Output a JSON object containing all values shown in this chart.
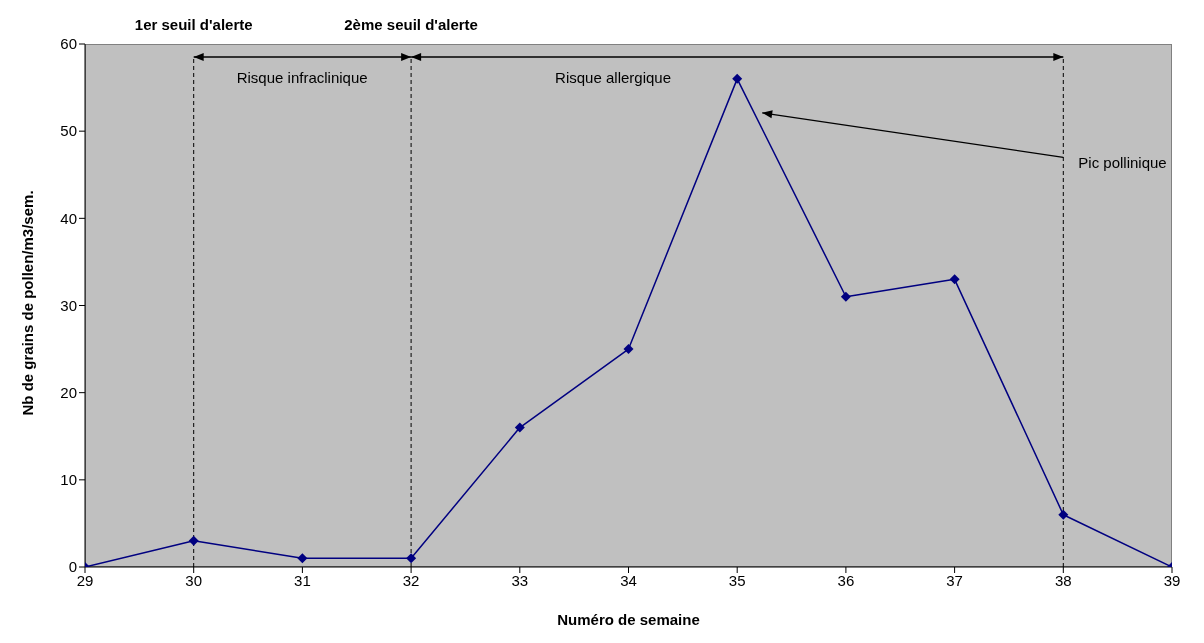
{
  "chart_data": {
    "type": "line",
    "xlabel": "Numéro de semaine",
    "ylabel": "Nb de grains de pollen/m3/sem.",
    "x": [
      29,
      30,
      31,
      32,
      33,
      34,
      35,
      36,
      37,
      38,
      39
    ],
    "series": [
      {
        "color": "#000080",
        "values": [
          0,
          3,
          1,
          1,
          16,
          25,
          56,
          31,
          33,
          6,
          0
        ]
      }
    ],
    "xlim": [
      29,
      39
    ],
    "xticks": [
      29,
      30,
      31,
      32,
      33,
      34,
      35,
      36,
      37,
      38,
      39
    ],
    "ylim": [
      0,
      60
    ],
    "yticks": [
      0,
      10,
      20,
      30,
      40,
      50,
      60
    ],
    "marker": "diamond",
    "line_style": "solid",
    "legend": false,
    "ref_lines": [
      {
        "axis": "x",
        "value": 30,
        "label": "1er seuil d'alerte",
        "line_style": "dashed",
        "color": "#000000"
      },
      {
        "axis": "x",
        "value": 32,
        "label": "2ème seuil d'alerte",
        "line_style": "dashed",
        "color": "#000000"
      },
      {
        "axis": "x",
        "value": 38,
        "label": null,
        "line_style": "dashed",
        "color": "#000000"
      }
    ],
    "annotations": [
      "Risque infraclinique",
      "Risque allergique",
      "Pic pollinique"
    ]
  }
}
